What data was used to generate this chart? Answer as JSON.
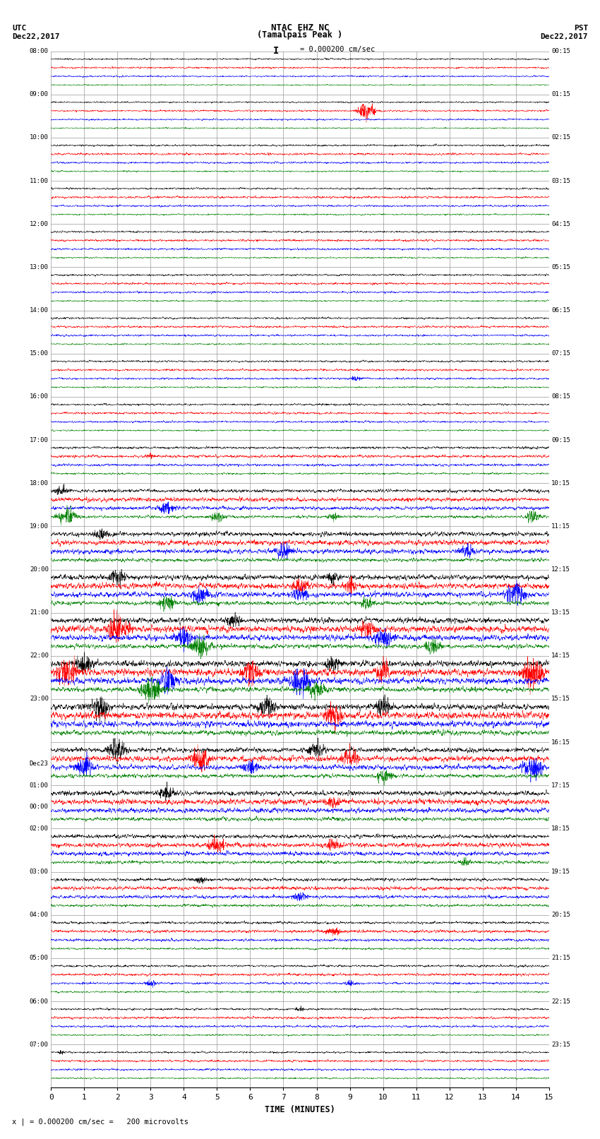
{
  "title_center": "NTAC EHZ NC\n(Tamalpais Peak )",
  "title_left": "UTC\nDec22,2017",
  "title_right": "PST\nDec22,2017",
  "scale_label": "I = 0.000200 cm/sec",
  "bottom_label": "x | = 0.000200 cm/sec =   200 microvolts",
  "xlabel": "TIME (MINUTES)",
  "xlim": [
    0,
    15
  ],
  "xticks": [
    0,
    1,
    2,
    3,
    4,
    5,
    6,
    7,
    8,
    9,
    10,
    11,
    12,
    13,
    14,
    15
  ],
  "background_color": "#ffffff",
  "grid_color": "#999999",
  "trace_colors": [
    "black",
    "red",
    "blue",
    "green"
  ],
  "left_times": [
    "08:00",
    "09:00",
    "10:00",
    "11:00",
    "12:00",
    "13:00",
    "14:00",
    "15:00",
    "16:00",
    "17:00",
    "18:00",
    "19:00",
    "20:00",
    "21:00",
    "22:00",
    "23:00",
    "Dec23\n00:00",
    "01:00",
    "02:00",
    "03:00",
    "04:00",
    "05:00",
    "06:00",
    "07:00"
  ],
  "right_times": [
    "00:15",
    "01:15",
    "02:15",
    "03:15",
    "04:15",
    "05:15",
    "06:15",
    "07:15",
    "08:15",
    "09:15",
    "10:15",
    "11:15",
    "12:15",
    "13:15",
    "14:15",
    "15:15",
    "16:15",
    "17:15",
    "18:15",
    "19:15",
    "20:15",
    "21:15",
    "22:15",
    "23:15"
  ],
  "n_rows": 24,
  "traces_per_row": 4,
  "noise_profile": [
    0.1,
    0.1,
    0.12,
    0.12,
    0.12,
    0.12,
    0.12,
    0.12,
    0.12,
    0.15,
    0.22,
    0.28,
    0.32,
    0.35,
    0.38,
    0.38,
    0.3,
    0.3,
    0.25,
    0.2,
    0.16,
    0.14,
    0.13,
    0.12
  ],
  "figsize": [
    8.5,
    16.13
  ],
  "dpi": 100
}
